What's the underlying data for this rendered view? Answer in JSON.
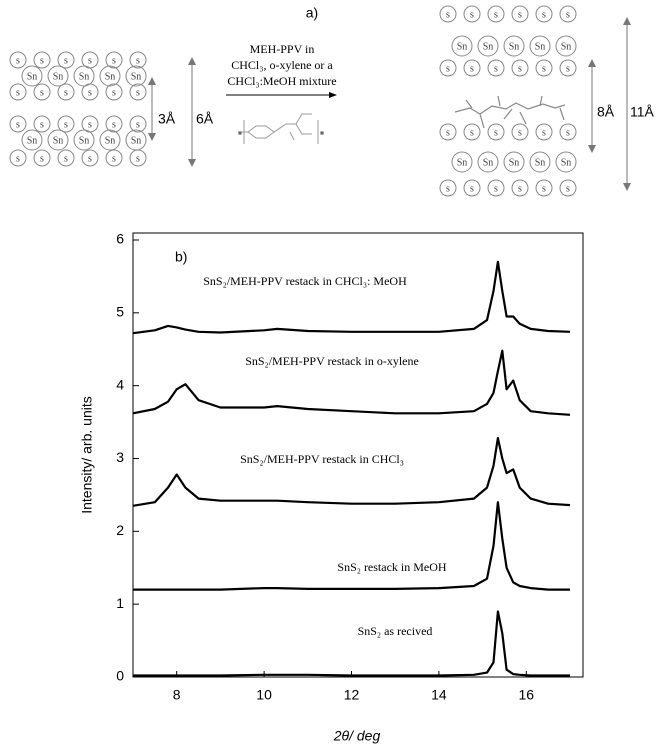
{
  "figure": {
    "label_a": "a)",
    "reaction_text": [
      "MEH-PPV in",
      "CHCl₃, o-xylene or a",
      "CHCl₃:MeOH mixture"
    ],
    "atoms": {
      "s": "s",
      "sn": "Sn"
    },
    "spacings": {
      "left_inner": "3Å",
      "left_outer": "6Å",
      "right_inner": "8Å",
      "right_outer": "11Å"
    }
  },
  "chart_data": {
    "type": "line",
    "panel_label": "b)",
    "xlabel": "2θ/ deg",
    "ylabel": "Intensity/ arb. units",
    "x": [
      7,
      7.5,
      7.8,
      8.0,
      8.2,
      8.5,
      9,
      10,
      10.3,
      11,
      12,
      13,
      14,
      14.8,
      15.1,
      15.25,
      15.35,
      15.45,
      15.55,
      15.7,
      15.85,
      16.1,
      16.5,
      17
    ],
    "xlim": [
      7,
      17
    ],
    "xticks": [
      8,
      10,
      12,
      14,
      16
    ],
    "ylim": [
      0,
      6
    ],
    "yticks": [
      0,
      1,
      2,
      3,
      4,
      5,
      6
    ],
    "series": [
      {
        "name": "SnS₂ as recived",
        "color": "#000000",
        "values": [
          0.02,
          0.02,
          0.02,
          0.02,
          0.02,
          0.02,
          0.02,
          0.03,
          0.03,
          0.03,
          0.02,
          0.02,
          0.02,
          0.03,
          0.06,
          0.2,
          0.9,
          0.6,
          0.1,
          0.04,
          0.03,
          0.02,
          0.02,
          0.02
        ]
      },
      {
        "name": "SnS₂ restack in MeOH",
        "color": "#000000",
        "values": [
          1.2,
          1.2,
          1.2,
          1.2,
          1.2,
          1.2,
          1.2,
          1.22,
          1.22,
          1.21,
          1.21,
          1.21,
          1.22,
          1.25,
          1.35,
          1.8,
          2.4,
          1.9,
          1.5,
          1.3,
          1.25,
          1.22,
          1.2,
          1.2
        ]
      },
      {
        "name": "SnS₂/MEH-PPV restack in CHCl₃",
        "color": "#000000",
        "values": [
          2.35,
          2.4,
          2.6,
          2.78,
          2.6,
          2.45,
          2.42,
          2.42,
          2.42,
          2.4,
          2.38,
          2.38,
          2.4,
          2.45,
          2.6,
          2.9,
          3.28,
          3.0,
          2.8,
          2.85,
          2.6,
          2.45,
          2.38,
          2.36
        ]
      },
      {
        "name": "SnS₂/MEH-PPV restack in o-xylene",
        "color": "#000000",
        "values": [
          3.62,
          3.68,
          3.78,
          3.95,
          4.02,
          3.8,
          3.7,
          3.7,
          3.72,
          3.68,
          3.65,
          3.62,
          3.62,
          3.65,
          3.75,
          3.9,
          4.2,
          4.48,
          3.95,
          4.07,
          3.8,
          3.65,
          3.62,
          3.6
        ]
      },
      {
        "name": "SnS₂/MEH-PPV restack in CHCl₃: MeOH",
        "color": "#000000",
        "values": [
          4.72,
          4.76,
          4.82,
          4.8,
          4.77,
          4.74,
          4.73,
          4.76,
          4.78,
          4.75,
          4.74,
          4.74,
          4.74,
          4.78,
          4.9,
          5.3,
          5.7,
          5.3,
          4.95,
          4.95,
          4.85,
          4.78,
          4.75,
          4.74
        ]
      }
    ]
  }
}
